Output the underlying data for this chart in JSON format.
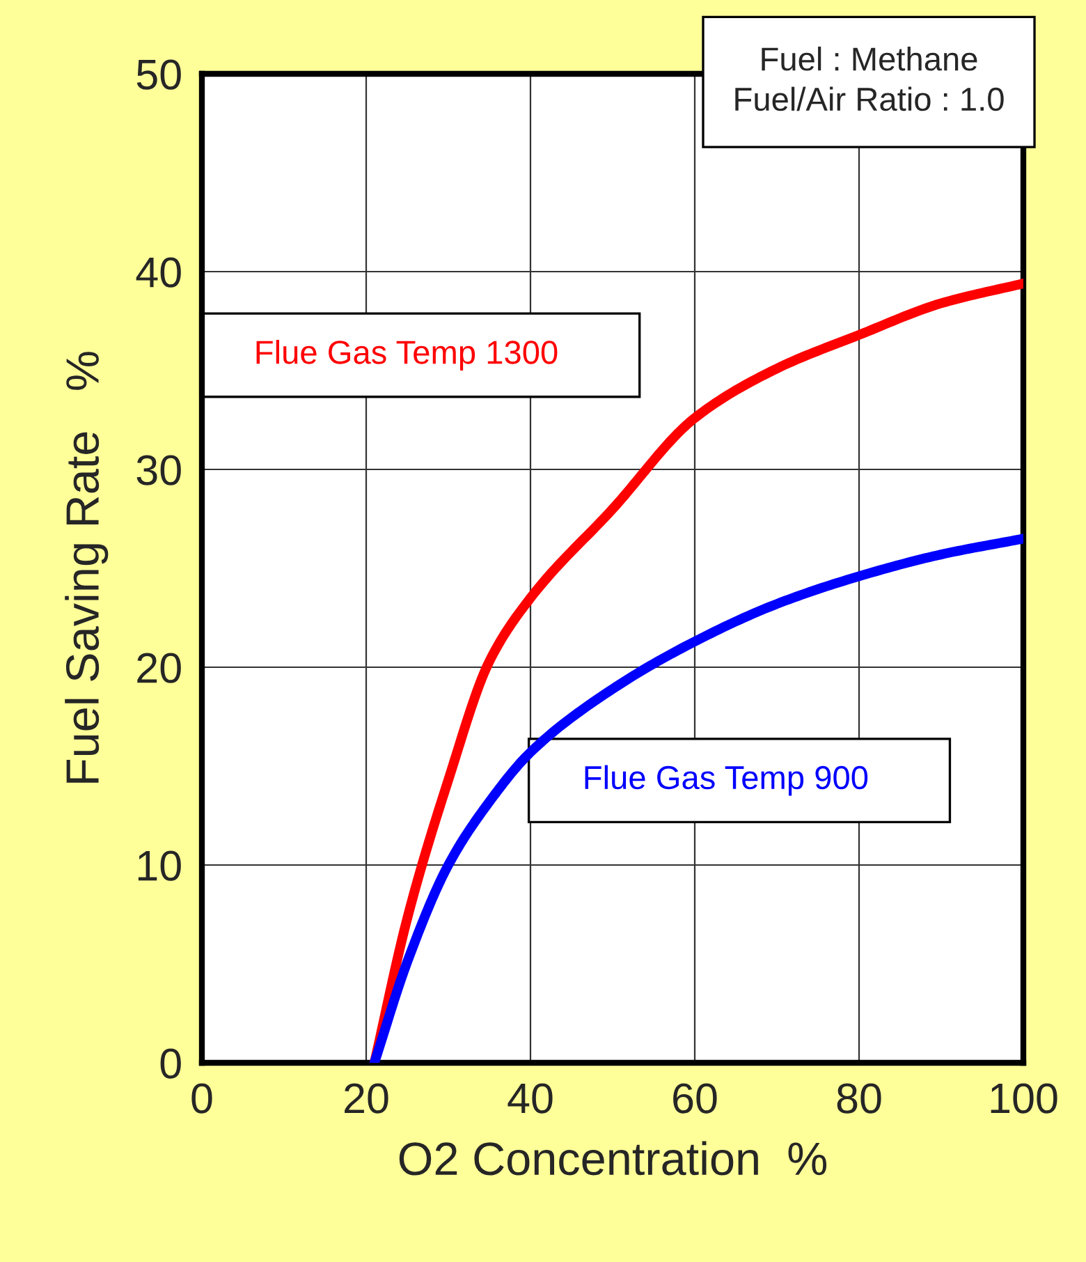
{
  "chart_data": {
    "type": "line",
    "xlabel": "O2 Concentration  %",
    "ylabel": "Fuel Saving Rate   %",
    "xlim": [
      0,
      100
    ],
    "ylim": [
      0,
      50
    ],
    "xticks": [
      0,
      20,
      40,
      60,
      80,
      100
    ],
    "yticks": [
      0,
      10,
      20,
      30,
      40,
      50
    ],
    "grid": true,
    "annotations": [
      "Fuel : Methane\nFuel/Air Ratio : 1.0"
    ],
    "series": [
      {
        "name": "Flue Gas Temp 1300",
        "color": "#ff0000",
        "x": [
          21,
          25,
          30,
          35,
          40,
          50,
          60,
          70,
          80,
          90,
          100
        ],
        "values": [
          0,
          7.3,
          14.3,
          20.3,
          23.5,
          28,
          32.6,
          35.1,
          36.8,
          38.4,
          39.4
        ]
      },
      {
        "name": "Flue Gas Temp 900",
        "color": "#0000ff",
        "x": [
          21,
          25,
          30,
          35,
          40,
          50,
          60,
          70,
          80,
          90,
          100
        ],
        "values": [
          0,
          5.1,
          10,
          13.2,
          15.7,
          18.9,
          21.3,
          23.2,
          24.6,
          25.7,
          26.5
        ]
      }
    ]
  }
}
